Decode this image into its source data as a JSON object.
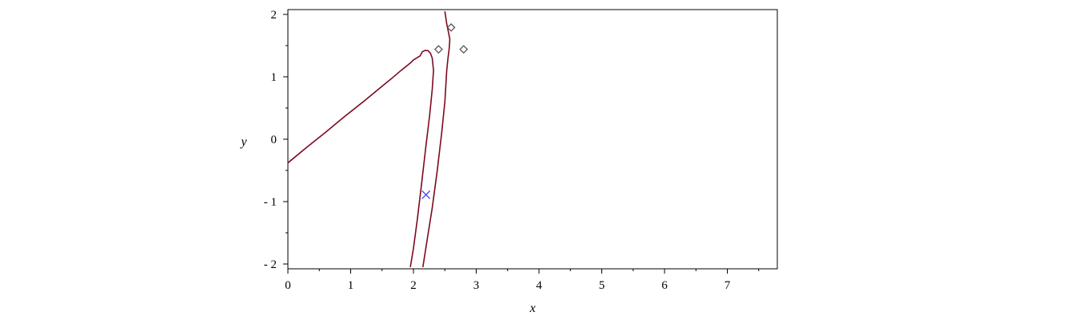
{
  "chart_data": {
    "type": "line",
    "xlabel": "x",
    "ylabel": "y",
    "xlim": [
      0,
      7.8
    ],
    "ylim": [
      -2.05,
      2.05
    ],
    "xticks": [
      {
        "value": 0,
        "label": "0"
      },
      {
        "value": 1,
        "label": "1"
      },
      {
        "value": 2,
        "label": "2"
      },
      {
        "value": 3,
        "label": "3"
      },
      {
        "value": 4,
        "label": "4"
      },
      {
        "value": 5,
        "label": "5"
      },
      {
        "value": 6,
        "label": "6"
      },
      {
        "value": 7,
        "label": "7"
      }
    ],
    "yticks": [
      {
        "value": 2,
        "label": "2"
      },
      {
        "value": 1,
        "label": "1"
      },
      {
        "value": 0,
        "label": "0"
      },
      {
        "value": -1,
        "label": "- 1"
      },
      {
        "value": -2,
        "label": "- 2"
      }
    ],
    "grid": false,
    "series": [
      {
        "color": "#7b0a1e",
        "points": [
          [
            0.0,
            -0.38
          ],
          [
            0.3,
            -0.13
          ],
          [
            0.6,
            0.11
          ],
          [
            0.9,
            0.36
          ],
          [
            1.2,
            0.6
          ],
          [
            1.5,
            0.85
          ],
          [
            1.65,
            0.97
          ],
          [
            1.8,
            1.1
          ],
          [
            1.95,
            1.22
          ],
          [
            2.0,
            1.27
          ],
          [
            2.05,
            1.3
          ],
          [
            2.08,
            1.32
          ],
          [
            2.1,
            1.33
          ],
          [
            2.12,
            1.36
          ],
          [
            2.14,
            1.4
          ],
          [
            2.18,
            1.42
          ],
          [
            2.23,
            1.42
          ],
          [
            2.27,
            1.38
          ],
          [
            2.3,
            1.3
          ],
          [
            2.32,
            1.1
          ],
          [
            2.3,
            0.8
          ],
          [
            2.26,
            0.4
          ],
          [
            2.2,
            -0.1
          ],
          [
            2.12,
            -0.8
          ],
          [
            2.06,
            -1.3
          ],
          [
            2.0,
            -1.75
          ],
          [
            1.95,
            -2.05
          ]
        ]
      },
      {
        "color": "#7b0a1e",
        "points": [
          [
            2.5,
            2.05
          ],
          [
            2.53,
            1.85
          ],
          [
            2.56,
            1.7
          ],
          [
            2.58,
            1.6
          ],
          [
            2.57,
            1.45
          ],
          [
            2.55,
            1.3
          ],
          [
            2.53,
            1.1
          ],
          [
            2.5,
            0.6
          ],
          [
            2.45,
            0.1
          ],
          [
            2.38,
            -0.5
          ],
          [
            2.3,
            -1.1
          ],
          [
            2.22,
            -1.6
          ],
          [
            2.15,
            -2.05
          ]
        ]
      }
    ],
    "markers": [
      {
        "shape": "diamond",
        "x": 2.4,
        "y": 1.44,
        "color": "#555555"
      },
      {
        "shape": "diamond",
        "x": 2.6,
        "y": 1.79,
        "color": "#555555"
      },
      {
        "shape": "diamond",
        "x": 2.8,
        "y": 1.44,
        "color": "#555555"
      },
      {
        "shape": "cross",
        "x": 2.2,
        "y": -0.89,
        "color": "#3a3aff"
      }
    ]
  }
}
